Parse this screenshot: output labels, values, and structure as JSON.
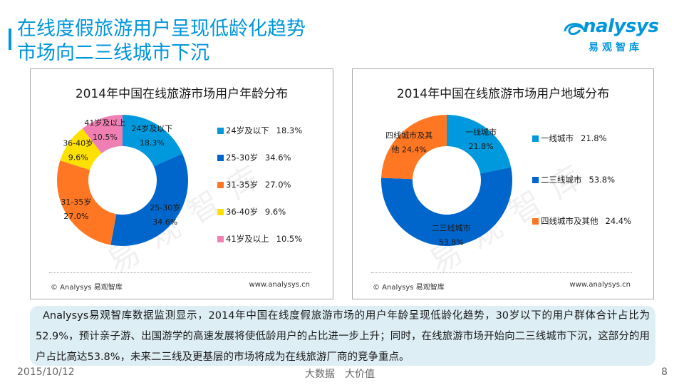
{
  "slide": {
    "title_lines": [
      "在线度假旅游用户呈现低龄化趋势",
      "市场向二三线城市下沉"
    ],
    "logo": {
      "brand": "nalysys",
      "brand_prefix": "a",
      "sub": "易观智库"
    },
    "summary": "Analysys易观智库数据监测显示，2014年中国在线度假旅游市场的用户年龄呈现低龄化趋势，30岁以下的用户群体合计占比为52.9%，预计亲子游、出国游学的高速发展将使低龄用户的占比进一步上升；同时，在线旅游市场开始向二三线城市下沉，这部分的用户占比高达53.8%，未来二三线及更基层的市场将成为在线旅游厂商的竞争重点。",
    "footer": {
      "date": "2015/10/12",
      "center": "大数据　大价值",
      "page": "8"
    },
    "panel_footer": {
      "copyright": "© Analysys 易观智库",
      "url": "www.analysys.cn"
    },
    "watermark": "易观智库"
  },
  "chart_data": [
    {
      "type": "pie",
      "variant": "donut",
      "title": "2014年中国在线旅游市场用户年龄分布",
      "categories": [
        "24岁及以下",
        "25-30岁",
        "31-35岁",
        "36-40岁",
        "41岁及以上"
      ],
      "values": [
        18.3,
        34.6,
        27.0,
        9.6,
        10.5
      ],
      "value_labels": [
        "18.3%",
        "34.6%",
        "27.0%",
        "9.6%",
        "10.5%"
      ],
      "colors": [
        "#0099dd",
        "#0066cc",
        "#ff7722",
        "#ffe100",
        "#f07fb4"
      ],
      "legend_position": "right",
      "unit": "%"
    },
    {
      "type": "pie",
      "variant": "donut",
      "title": "2014年中国在线旅游市场用户地域分布",
      "categories": [
        "一线城市",
        "二三线城市",
        "四线城市及其他"
      ],
      "values": [
        21.8,
        53.8,
        24.4
      ],
      "value_labels": [
        "21.8%",
        "53.8%",
        "24.4%"
      ],
      "slice_label_lines": [
        [
          "一线城市",
          "21.8%"
        ],
        [
          "二三线城市",
          "53.8%"
        ],
        [
          "四线城市及其",
          "他  24.4%"
        ]
      ],
      "colors": [
        "#0099dd",
        "#0066cc",
        "#ff7722"
      ],
      "legend_position": "right",
      "unit": "%"
    }
  ]
}
